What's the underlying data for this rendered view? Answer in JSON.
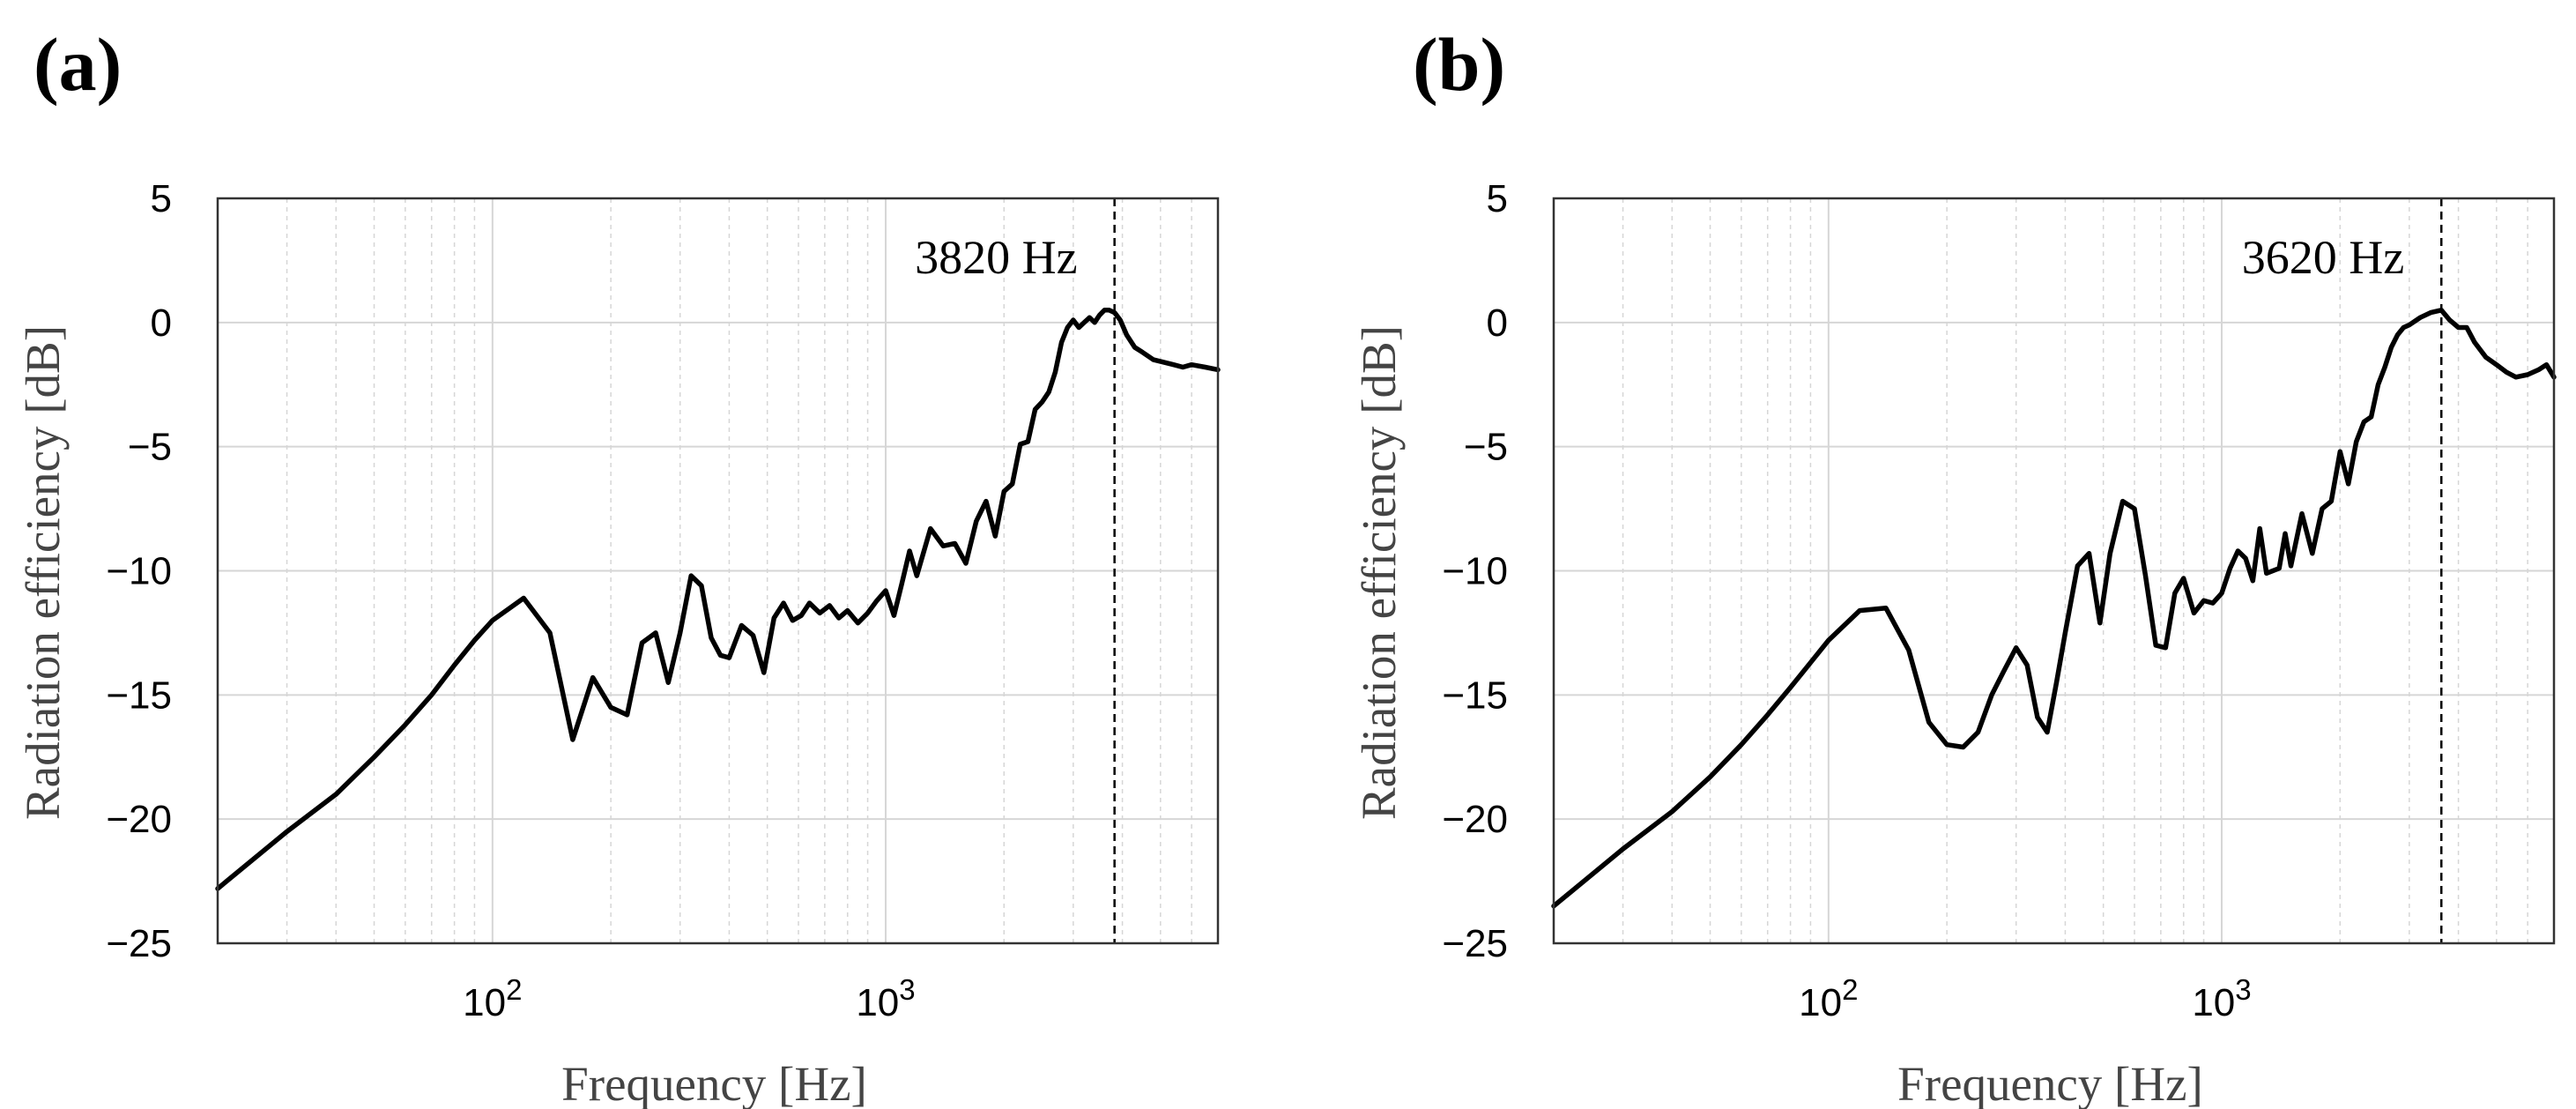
{
  "chart_data": [
    {
      "panel": "(a)",
      "type": "line",
      "xscale": "log",
      "xlabel": "Frequency [Hz]",
      "ylabel": "Radiation efficiency [dB]",
      "xlim": [
        20,
        7000
      ],
      "ylim": [
        -25,
        5
      ],
      "yticks": [
        5,
        0,
        -5,
        -10,
        -15,
        -20,
        -25
      ],
      "ytick_labels": [
        "5",
        "0",
        "−5",
        "−10",
        "−15",
        "−20",
        "−25"
      ],
      "xticks": [
        {
          "value": 100,
          "base": "10",
          "exp": "2"
        },
        {
          "value": 1000,
          "base": "10",
          "exp": "3"
        }
      ],
      "grid": true,
      "marker": {
        "x": 3820,
        "label": "3820 Hz"
      },
      "series": [
        {
          "name": "radiation efficiency (a)",
          "x": [
            20,
            30,
            40,
            50,
            60,
            70,
            80,
            90,
            100,
            120,
            140,
            160,
            180,
            200,
            220,
            240,
            260,
            280,
            300,
            320,
            340,
            360,
            380,
            400,
            430,
            460,
            490,
            520,
            550,
            580,
            610,
            640,
            680,
            720,
            760,
            800,
            850,
            900,
            950,
            1000,
            1050,
            1100,
            1150,
            1200,
            1300,
            1400,
            1500,
            1600,
            1700,
            1800,
            1900,
            2000,
            2100,
            2200,
            2300,
            2400,
            2500,
            2600,
            2700,
            2800,
            2900,
            3000,
            3100,
            3200,
            3300,
            3400,
            3500,
            3600,
            3700,
            3820,
            3950,
            4100,
            4300,
            4500,
            4800,
            5100,
            5400,
            5700,
            6000,
            6500,
            7000
          ],
          "y": [
            -22.8,
            -20.5,
            -19.0,
            -17.5,
            -16.2,
            -15.0,
            -13.8,
            -12.8,
            -12.0,
            -11.1,
            -12.5,
            -16.8,
            -14.3,
            -15.5,
            -15.8,
            -12.9,
            -12.5,
            -14.5,
            -12.5,
            -10.2,
            -10.6,
            -12.7,
            -13.4,
            -13.5,
            -12.2,
            -12.6,
            -14.1,
            -11.9,
            -11.3,
            -12.0,
            -11.8,
            -11.3,
            -11.7,
            -11.4,
            -11.9,
            -11.6,
            -12.1,
            -11.7,
            -11.2,
            -10.8,
            -11.8,
            -10.5,
            -9.2,
            -10.2,
            -8.3,
            -9.0,
            -8.9,
            -9.7,
            -8.0,
            -7.2,
            -8.6,
            -6.8,
            -6.5,
            -4.9,
            -4.8,
            -3.5,
            -3.2,
            -2.8,
            -2.0,
            -0.8,
            -0.2,
            0.1,
            -0.2,
            0.0,
            0.2,
            0.0,
            0.3,
            0.5,
            0.5,
            0.4,
            0.1,
            -0.5,
            -1.0,
            -1.2,
            -1.5,
            -1.6,
            -1.7,
            -1.8,
            -1.7,
            -1.8,
            -1.9
          ]
        }
      ]
    },
    {
      "panel": "(b)",
      "type": "line",
      "xscale": "log",
      "xlabel": "Frequency [Hz]",
      "ylabel": "Radiation efficiency [dB]",
      "xlim": [
        20,
        7000
      ],
      "ylim": [
        -25,
        5
      ],
      "yticks": [
        5,
        0,
        -5,
        -10,
        -15,
        -20,
        -25
      ],
      "ytick_labels": [
        "5",
        "0",
        "−5",
        "−10",
        "−15",
        "−20",
        "−25"
      ],
      "xticks": [
        {
          "value": 100,
          "base": "10",
          "exp": "2"
        },
        {
          "value": 1000,
          "base": "10",
          "exp": "3"
        }
      ],
      "grid": true,
      "marker": {
        "x": 3620,
        "label": "3620 Hz"
      },
      "series": [
        {
          "name": "radiation efficiency (b)",
          "x": [
            20,
            30,
            40,
            50,
            60,
            70,
            80,
            90,
            100,
            120,
            140,
            160,
            180,
            200,
            220,
            240,
            260,
            280,
            300,
            320,
            340,
            360,
            380,
            400,
            430,
            460,
            490,
            520,
            560,
            600,
            640,
            680,
            720,
            760,
            800,
            850,
            900,
            950,
            1000,
            1050,
            1100,
            1150,
            1200,
            1250,
            1300,
            1400,
            1450,
            1500,
            1600,
            1700,
            1800,
            1900,
            2000,
            2100,
            2200,
            2300,
            2400,
            2500,
            2600,
            2700,
            2800,
            2900,
            3000,
            3200,
            3400,
            3620,
            3800,
            4000,
            4200,
            4400,
            4700,
            5000,
            5300,
            5600,
            6000,
            6400,
            6700,
            7000
          ],
          "y": [
            -23.5,
            -21.2,
            -19.7,
            -18.3,
            -17.0,
            -15.8,
            -14.7,
            -13.7,
            -12.8,
            -11.6,
            -11.5,
            -13.2,
            -16.1,
            -17.0,
            -17.1,
            -16.5,
            -15.0,
            -14.0,
            -13.1,
            -13.8,
            -15.9,
            -16.5,
            -14.5,
            -12.5,
            -9.8,
            -9.3,
            -12.1,
            -9.3,
            -7.2,
            -7.5,
            -10.2,
            -13.0,
            -13.1,
            -10.9,
            -10.3,
            -11.7,
            -11.2,
            -11.3,
            -10.9,
            -9.9,
            -9.2,
            -9.5,
            -10.4,
            -8.3,
            -10.1,
            -9.9,
            -8.5,
            -9.8,
            -7.7,
            -9.3,
            -7.5,
            -7.2,
            -5.2,
            -6.5,
            -4.8,
            -4.0,
            -3.8,
            -2.5,
            -1.8,
            -1.0,
            -0.5,
            -0.2,
            -0.1,
            0.2,
            0.4,
            0.5,
            0.1,
            -0.2,
            -0.2,
            -0.8,
            -1.4,
            -1.7,
            -2.0,
            -2.2,
            -2.1,
            -1.9,
            -1.7,
            -2.2
          ]
        }
      ]
    }
  ]
}
